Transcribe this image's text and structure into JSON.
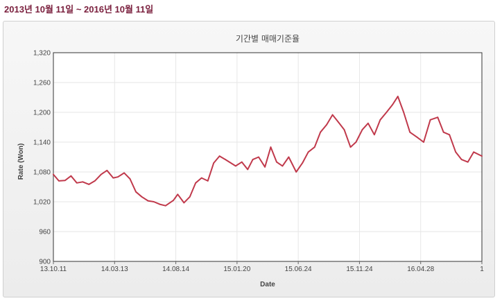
{
  "header": {
    "range_text": "2013년 10월 11일 ~ 2016년 10월 11일"
  },
  "colors": {
    "line": "#c0394b",
    "header": "#7a1f3d",
    "grid": "#e6e6e6"
  },
  "chart_data": {
    "type": "line",
    "title": "기간별 매매기준율",
    "xlabel": "Date",
    "ylabel": "Rate (Won)",
    "ylim": [
      900,
      1320
    ],
    "yticks": [
      900,
      960,
      1020,
      1080,
      1140,
      1200,
      1260,
      1320
    ],
    "ytick_labels": [
      "900",
      "960",
      "1,020",
      "1,080",
      "1,140",
      "1,200",
      "1,260",
      "1,320"
    ],
    "xticks": [
      "13.10.11",
      "14.03.13",
      "14.08.14",
      "15.01.20",
      "15.06.24",
      "15.11.24",
      "16.04.28",
      "1"
    ],
    "grid": true,
    "legend": "none",
    "series": [
      {
        "x": [
          "13.10.11",
          "13.10.25",
          "13.11.10",
          "13.11.25",
          "13.12.10",
          "13.12.25",
          "14.01.10",
          "14.01.25",
          "14.02.10",
          "14.02.25",
          "14.03.13",
          "14.03.25",
          "14.04.10",
          "14.04.25",
          "14.05.10",
          "14.05.25",
          "14.06.10",
          "14.06.25",
          "14.07.10",
          "14.07.25",
          "14.08.14",
          "14.08.25",
          "14.09.10",
          "14.09.25",
          "14.10.10",
          "14.10.25",
          "14.11.10",
          "14.11.25",
          "14.12.10",
          "14.12.25",
          "15.01.20",
          "15.02.05",
          "15.02.20",
          "15.03.05",
          "15.03.20",
          "15.04.05",
          "15.04.20",
          "15.05.05",
          "15.05.20",
          "15.06.05",
          "15.06.24",
          "15.07.10",
          "15.07.25",
          "15.08.10",
          "15.08.25",
          "15.09.10",
          "15.09.25",
          "15.10.10",
          "15.10.25",
          "15.11.10",
          "15.11.24",
          "15.12.10",
          "15.12.25",
          "16.01.10",
          "16.01.25",
          "16.02.10",
          "16.02.25",
          "16.03.10",
          "16.03.25",
          "16.04.10",
          "16.04.28",
          "16.05.15",
          "16.06.01",
          "16.06.20",
          "16.07.05",
          "16.07.20",
          "16.08.05",
          "16.08.20",
          "16.09.05",
          "16.09.20",
          "16.10.11"
        ],
        "values": [
          1075,
          1062,
          1063,
          1072,
          1058,
          1060,
          1055,
          1062,
          1075,
          1083,
          1068,
          1070,
          1078,
          1066,
          1040,
          1030,
          1022,
          1020,
          1015,
          1012,
          1023,
          1035,
          1018,
          1030,
          1058,
          1068,
          1062,
          1098,
          1112,
          1105,
          1092,
          1100,
          1085,
          1105,
          1110,
          1090,
          1130,
          1100,
          1092,
          1110,
          1080,
          1098,
          1120,
          1130,
          1160,
          1175,
          1195,
          1180,
          1165,
          1130,
          1140,
          1165,
          1178,
          1155,
          1185,
          1200,
          1215,
          1232,
          1200,
          1160,
          1150,
          1140,
          1185,
          1190,
          1160,
          1155,
          1120,
          1105,
          1100,
          1120,
          1112
        ]
      }
    ]
  }
}
